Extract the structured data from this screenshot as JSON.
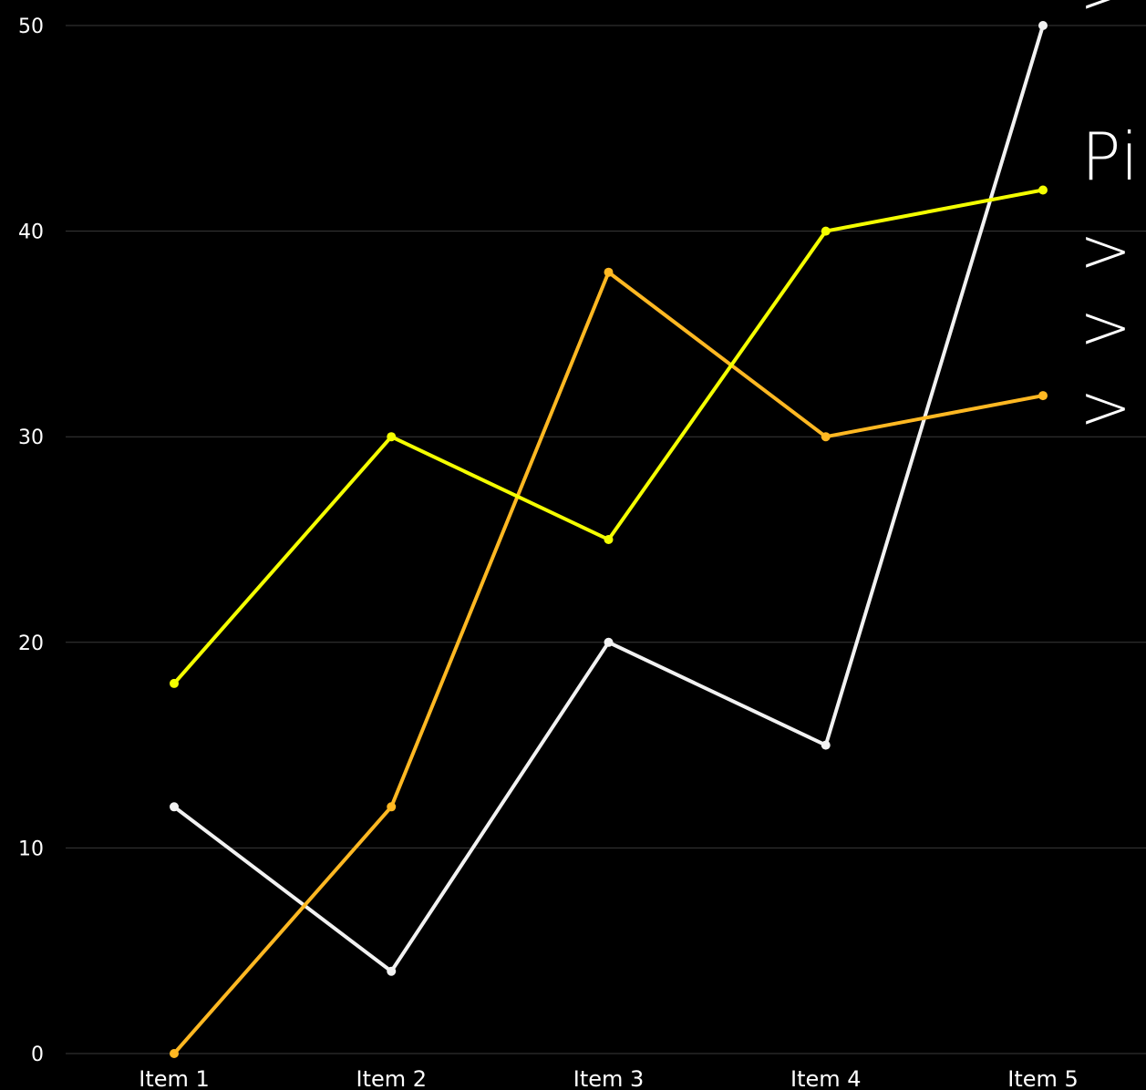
{
  "chart_data": {
    "type": "line",
    "categories": [
      "Item 1",
      "Item 2",
      "Item 3",
      "Item 4",
      "Item 5"
    ],
    "series": [
      {
        "color": "#f2f2f2",
        "values": [
          12,
          4,
          20,
          15,
          50
        ]
      },
      {
        "color": "#ffb822",
        "values": [
          0,
          12,
          38,
          30,
          32
        ]
      },
      {
        "color": "#f4ff00",
        "values": [
          18,
          30,
          25,
          40,
          42
        ]
      }
    ],
    "ylim": [
      0,
      50
    ],
    "yticks": [
      0,
      10,
      20,
      30,
      40,
      50
    ],
    "grid": true,
    "gridColor": "#3a3a3a",
    "axisTextColor": "#ffffff",
    "backgroundColor": "#000000"
  },
  "overlay": {
    "title_fragment": "Pi",
    "carets": [
      ">",
      ">",
      ">",
      ">"
    ]
  }
}
